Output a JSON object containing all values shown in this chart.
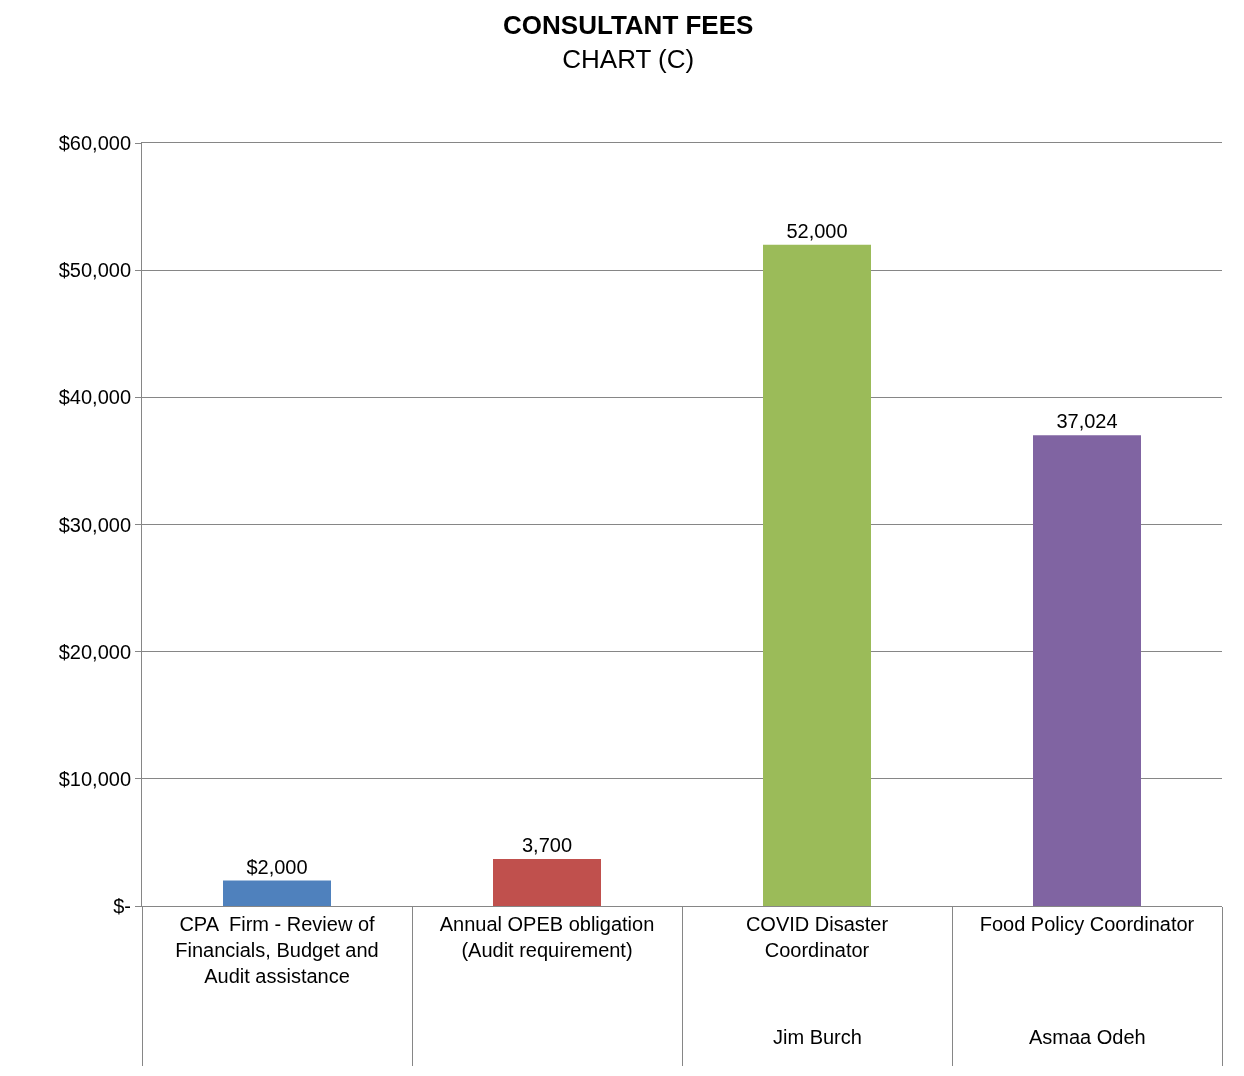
{
  "chart_data": {
    "type": "bar",
    "title": "CONSULTANT FEES",
    "subtitle": "CHART (C)",
    "categories": [
      "CPA  Firm - Review of Financials, Budget and Audit assistance",
      "Annual OPEB obligation (Audit requirement)",
      "COVID Disaster Coordinator",
      "Food Policy Coordinator"
    ],
    "values": [
      2000,
      3700,
      52000,
      37024
    ],
    "colors": [
      "#4f81bd",
      "#c0504d",
      "#9bbb59",
      "#8064a2"
    ],
    "value_labels": [
      "$2,000",
      "3,700",
      "52,000",
      "37,024"
    ],
    "annotations": [
      "Jim Burch",
      "Asmaa Odeh"
    ],
    "ylim": [
      0,
      60000
    ],
    "yticks": [
      {
        "value": 0,
        "label": "$-"
      },
      {
        "value": 10000,
        "label": "$10,000"
      },
      {
        "value": 20000,
        "label": "$20,000"
      },
      {
        "value": 30000,
        "label": "$30,000"
      },
      {
        "value": 40000,
        "label": "$40,000"
      },
      {
        "value": 50000,
        "label": "$50,000"
      },
      {
        "value": 60000,
        "label": "$60,000"
      }
    ],
    "grid": "y",
    "legend": false
  }
}
